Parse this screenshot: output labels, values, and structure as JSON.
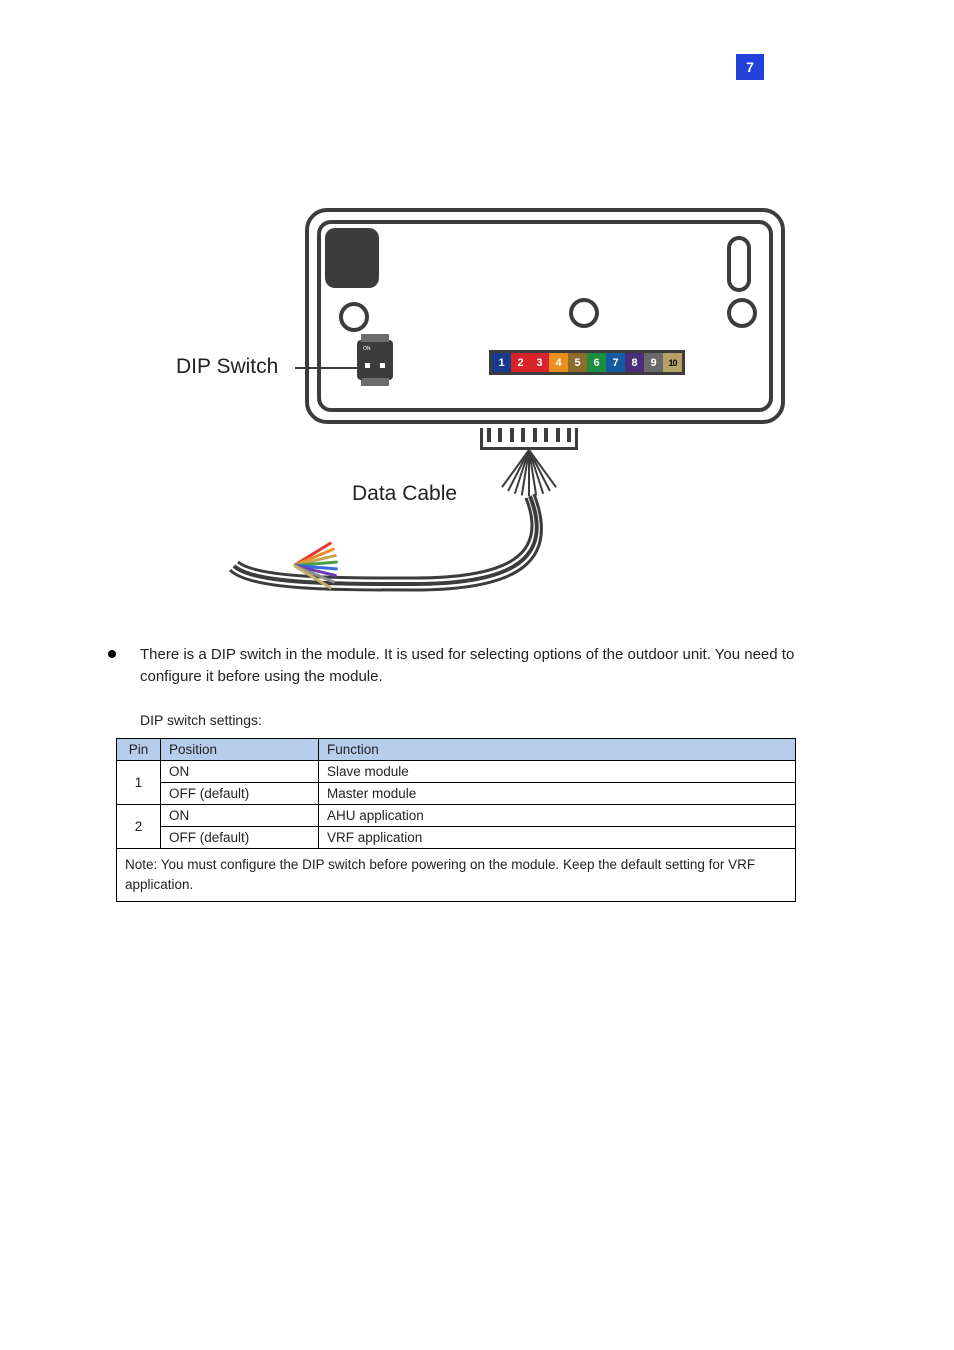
{
  "page_number": "7",
  "diagram": {
    "dip_switch_label": "DIP Switch",
    "data_cable_label": "Data Cable",
    "color_cells": [
      {
        "label": "1",
        "bg": "#173a8f",
        "fg": "#ffffff"
      },
      {
        "label": "2",
        "bg": "#d8232a",
        "fg": "#ffffff"
      },
      {
        "label": "3",
        "bg": "#d8232a",
        "fg": "#ffffff"
      },
      {
        "label": "4",
        "bg": "#e98f1e",
        "fg": "#ffffff"
      },
      {
        "label": "5",
        "bg": "#8e6a2c",
        "fg": "#ffffff"
      },
      {
        "label": "6",
        "bg": "#1a8f3e",
        "fg": "#ffffff"
      },
      {
        "label": "7",
        "bg": "#145aa0",
        "fg": "#ffffff"
      },
      {
        "label": "8",
        "bg": "#4a2e7a",
        "fg": "#ffffff"
      },
      {
        "label": "9",
        "bg": "#6a6a6a",
        "fg": "#ffffff"
      },
      {
        "label": "10",
        "bg": "#b8a168",
        "fg": "#000000"
      }
    ],
    "cable_colors": [
      "#e63a3a",
      "#f08a2a",
      "#c9a54a",
      "#4aa04a",
      "#3a6ae0",
      "#6a3ab0",
      "#8a8a8a",
      "#c2b06a"
    ]
  },
  "bullet_text": "There is a DIP switch in the module. It is used for selecting options of the outdoor unit. You need to configure it before using the module.",
  "table": {
    "caption": "DIP switch settings:",
    "headers": {
      "pin": "Pin",
      "position": "Position",
      "function": "Function"
    },
    "rows": [
      {
        "pin": "1",
        "pin_rowspan": 2,
        "position": "ON",
        "function": "Slave module"
      },
      {
        "pin": "",
        "position": "OFF (default)",
        "function": "Master module"
      },
      {
        "pin": "2",
        "pin_rowspan": 2,
        "position": "ON",
        "function": "AHU application"
      },
      {
        "pin": "",
        "position": "OFF (default)",
        "function": "VRF application"
      }
    ],
    "footnote": "Note: You must configure the DIP switch before powering on the module. Keep the default setting for VRF application."
  }
}
